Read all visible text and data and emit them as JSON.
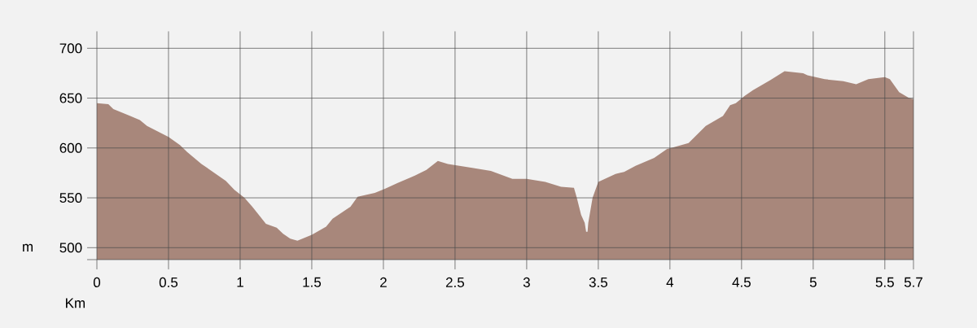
{
  "chart_data": {
    "type": "area",
    "xlabel": "Km",
    "ylabel": "m",
    "x": [
      0,
      0.08,
      0.115,
      0.233,
      0.3,
      0.35,
      0.5,
      0.58,
      0.63,
      0.73,
      0.9,
      0.96,
      1.03,
      1.085,
      1.18,
      1.255,
      1.3,
      1.35,
      1.4,
      1.5,
      1.6,
      1.645,
      1.77,
      1.82,
      1.94,
      2.01,
      2.1,
      2.2,
      2.3,
      2.38,
      2.45,
      2.62,
      2.75,
      2.9,
      3.0,
      3.13,
      3.24,
      3.33,
      3.35,
      3.38,
      3.405,
      3.415,
      3.425,
      3.43,
      3.46,
      3.5,
      3.62,
      3.68,
      3.76,
      3.89,
      3.98,
      4.01,
      4.13,
      4.25,
      4.37,
      4.42,
      4.46,
      4.52,
      4.58,
      4.7,
      4.8,
      4.93,
      4.96,
      5.08,
      5.21,
      5.3,
      5.385,
      5.5,
      5.535,
      5.6,
      5.67,
      5.7
    ],
    "series": [
      {
        "color": "#a8877b",
        "values": [
          645,
          644,
          639,
          632,
          628,
          622,
          611,
          603,
          596,
          584,
          567,
          558,
          550,
          541,
          524,
          520,
          514,
          509,
          507,
          513,
          521,
          529,
          541,
          551,
          555,
          559,
          565,
          571,
          578,
          587,
          584,
          580,
          577,
          569,
          569,
          566,
          561,
          560,
          550,
          533,
          525,
          516,
          516,
          525,
          550,
          566,
          574,
          576,
          582,
          590,
          599,
          600,
          605,
          622,
          632,
          643,
          645,
          652,
          658,
          668,
          677,
          675,
          673,
          669,
          667,
          664,
          669,
          671,
          669,
          656,
          650,
          649
        ]
      }
    ],
    "xlim": [
      0,
      5.7
    ],
    "ylim": [
      488,
      717
    ],
    "xticks": [
      0,
      0.5,
      1,
      1.5,
      2,
      2.5,
      3,
      3.5,
      4,
      4.5,
      5,
      5.5,
      5.7
    ],
    "yticks": [
      {
        "value": 488,
        "label": null
      },
      500,
      550,
      600,
      650,
      700
    ],
    "grid": true
  }
}
